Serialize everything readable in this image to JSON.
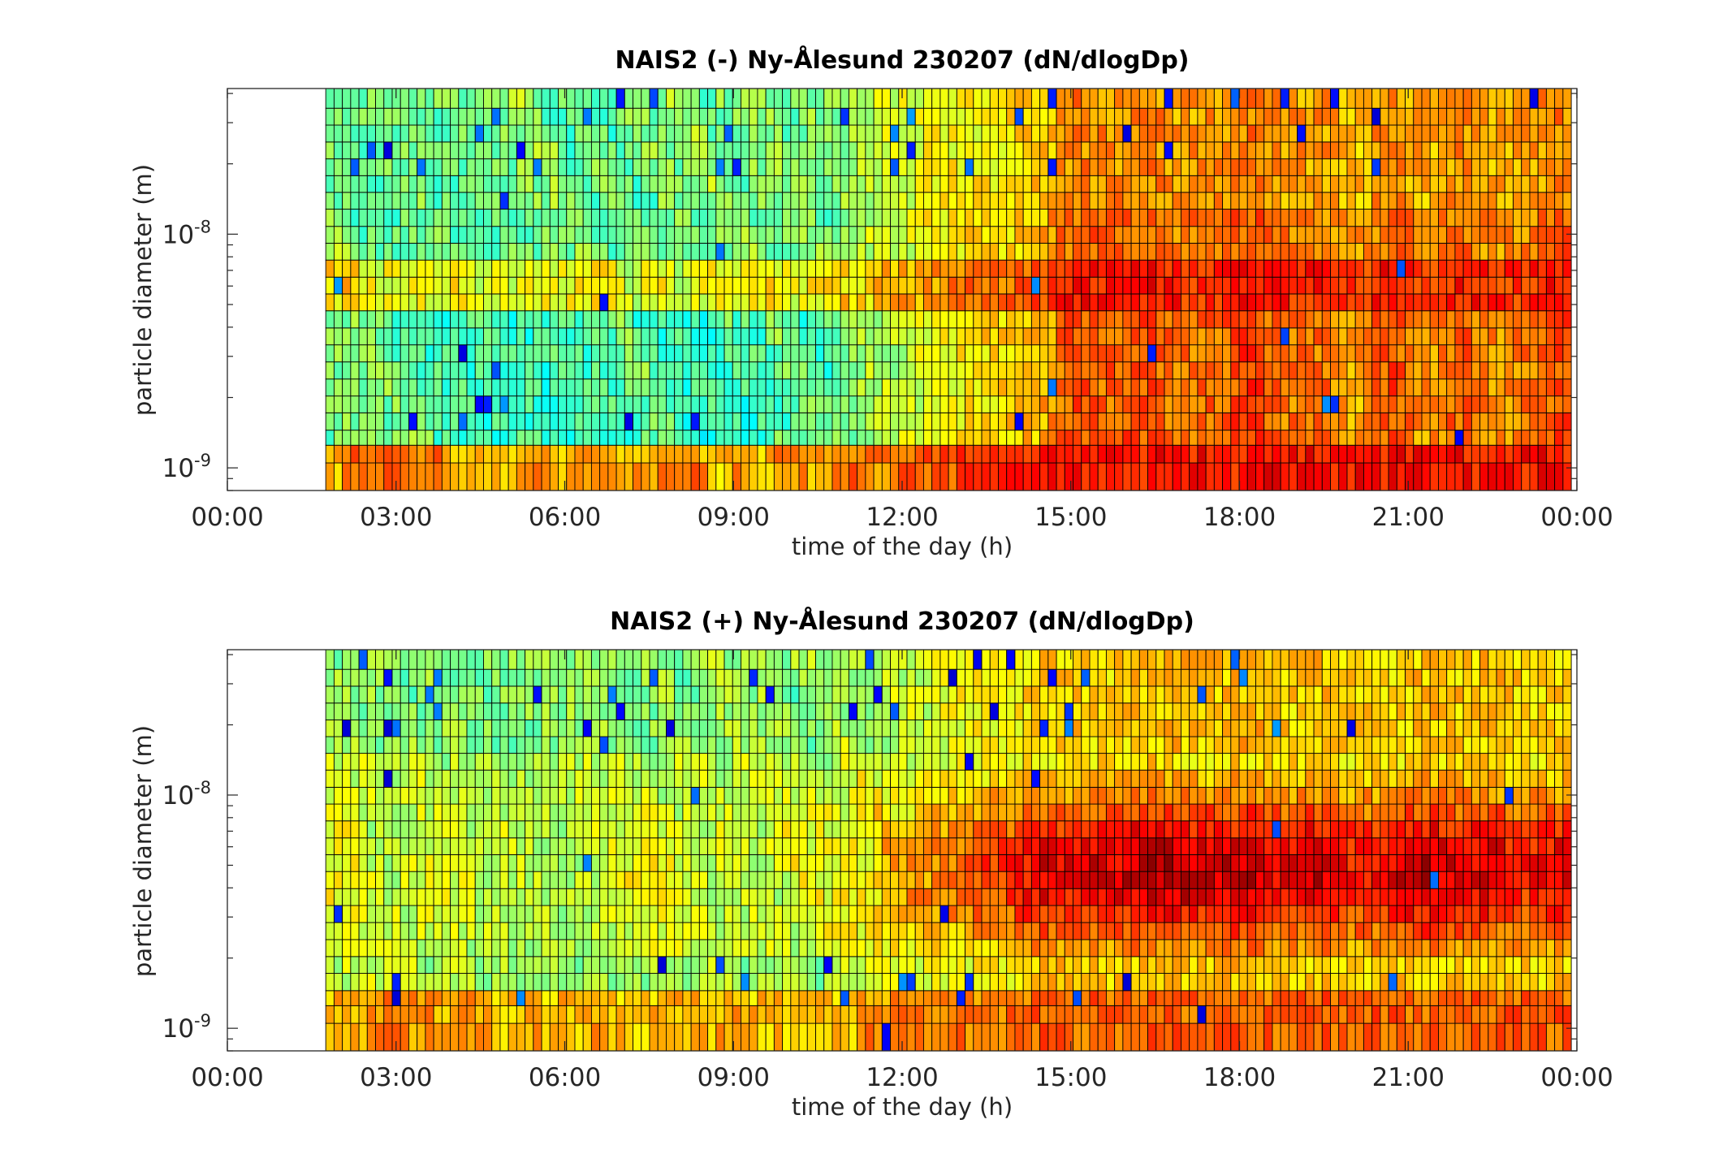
{
  "chart_data": [
    {
      "type": "heatmap",
      "title": "NAIS2 (-) Ny-Ålesund 230207 (dN/dlogDp)",
      "xlabel": "time of the day (h)",
      "ylabel": "particle diameter (m)",
      "x_range_hours": [
        0,
        24
      ],
      "x_ticks": [
        "00:00",
        "03:00",
        "06:00",
        "09:00",
        "12:00",
        "15:00",
        "18:00",
        "21:00",
        "00:00"
      ],
      "y_scale": "log",
      "y_range_m": [
        8e-10,
        4.2e-08
      ],
      "y_ticks": [
        {
          "value": 1e-09,
          "base": "10",
          "exp": "-9"
        },
        {
          "value": 1e-08,
          "base": "10",
          "exp": "-8"
        }
      ],
      "data_start_hour": 1.75,
      "data_end_hour": 23.9,
      "n_time_bins": 150,
      "diameter_edges_m": [
        8e-10,
        1.05e-09,
        1.25e-09,
        1.45e-09,
        1.72e-09,
        2.03e-09,
        2.4e-09,
        2.84e-09,
        3.36e-09,
        3.97e-09,
        4.7e-09,
        5.55e-09,
        6.55e-09,
        7.75e-09,
        9.15e-09,
        1.08e-08,
        1.28e-08,
        1.51e-08,
        1.78e-08,
        2.1e-08,
        2.48e-08,
        2.93e-08,
        3.46e-08,
        4.2e-08
      ],
      "colormap": "jet",
      "cell_edge_color": "#000000",
      "pattern": "negative"
    },
    {
      "type": "heatmap",
      "title": "NAIS2 (+) Ny-Ålesund 230207 (dN/dlogDp)",
      "xlabel": "time of the day (h)",
      "ylabel": "particle diameter (m)",
      "x_range_hours": [
        0,
        24
      ],
      "x_ticks": [
        "00:00",
        "03:00",
        "06:00",
        "09:00",
        "12:00",
        "15:00",
        "18:00",
        "21:00",
        "00:00"
      ],
      "y_scale": "log",
      "y_range_m": [
        8e-10,
        4.2e-08
      ],
      "y_ticks": [
        {
          "value": 1e-09,
          "base": "10",
          "exp": "-9"
        },
        {
          "value": 1e-08,
          "base": "10",
          "exp": "-8"
        }
      ],
      "data_start_hour": 1.75,
      "data_end_hour": 23.9,
      "n_time_bins": 150,
      "diameter_edges_m": [
        8e-10,
        1.05e-09,
        1.25e-09,
        1.45e-09,
        1.72e-09,
        2.03e-09,
        2.4e-09,
        2.84e-09,
        3.36e-09,
        3.97e-09,
        4.7e-09,
        5.55e-09,
        6.55e-09,
        7.75e-09,
        9.15e-09,
        1.08e-08,
        1.28e-08,
        1.51e-08,
        1.78e-08,
        2.1e-08,
        2.48e-08,
        2.93e-08,
        3.46e-08,
        4.2e-08
      ],
      "colormap": "jet",
      "cell_edge_color": "#000000",
      "pattern": "positive"
    }
  ]
}
